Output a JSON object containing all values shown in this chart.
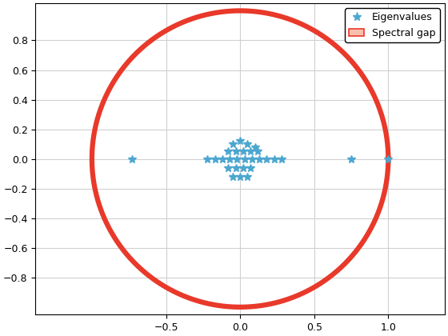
{
  "title": "",
  "xlim": [
    -1.1,
    1.1
  ],
  "ylim": [
    -1.05,
    1.05
  ],
  "circle_color": "#E8392A",
  "circle_fill_color": "#F9BFAD",
  "circle_linewidth": 4.5,
  "cluster_x": [
    -0.05,
    0.0,
    0.05,
    0.1,
    -0.08,
    -0.03,
    0.02,
    0.07,
    0.12,
    -0.22,
    -0.17,
    -0.12,
    -0.07,
    -0.02,
    0.03,
    0.08,
    0.13,
    0.18,
    0.23,
    0.28,
    -0.08,
    -0.03,
    0.02,
    0.07,
    -0.05,
    0.0,
    0.05,
    -0.73,
    0.75,
    1.0
  ],
  "cluster_y": [
    0.1,
    0.12,
    0.1,
    0.08,
    0.05,
    0.05,
    0.05,
    0.05,
    0.05,
    0.0,
    0.0,
    0.0,
    0.0,
    0.0,
    0.0,
    0.0,
    0.0,
    0.0,
    0.0,
    0.0,
    -0.06,
    -0.06,
    -0.06,
    -0.06,
    -0.12,
    -0.12,
    -0.12,
    0.0,
    0.0,
    0.0
  ],
  "marker_color": "#4CA7D0",
  "marker_size": 7,
  "xticks": [
    -0.5,
    0,
    0.5,
    1.0
  ],
  "yticks": [
    -0.8,
    -0.6,
    -0.4,
    -0.2,
    0.0,
    0.2,
    0.4,
    0.6,
    0.8
  ],
  "grid_color": "#d0d0d0",
  "bg_color": "#ffffff",
  "legend_eigenvalues": "Eigenvalues",
  "legend_spectral": "Spectral gap"
}
